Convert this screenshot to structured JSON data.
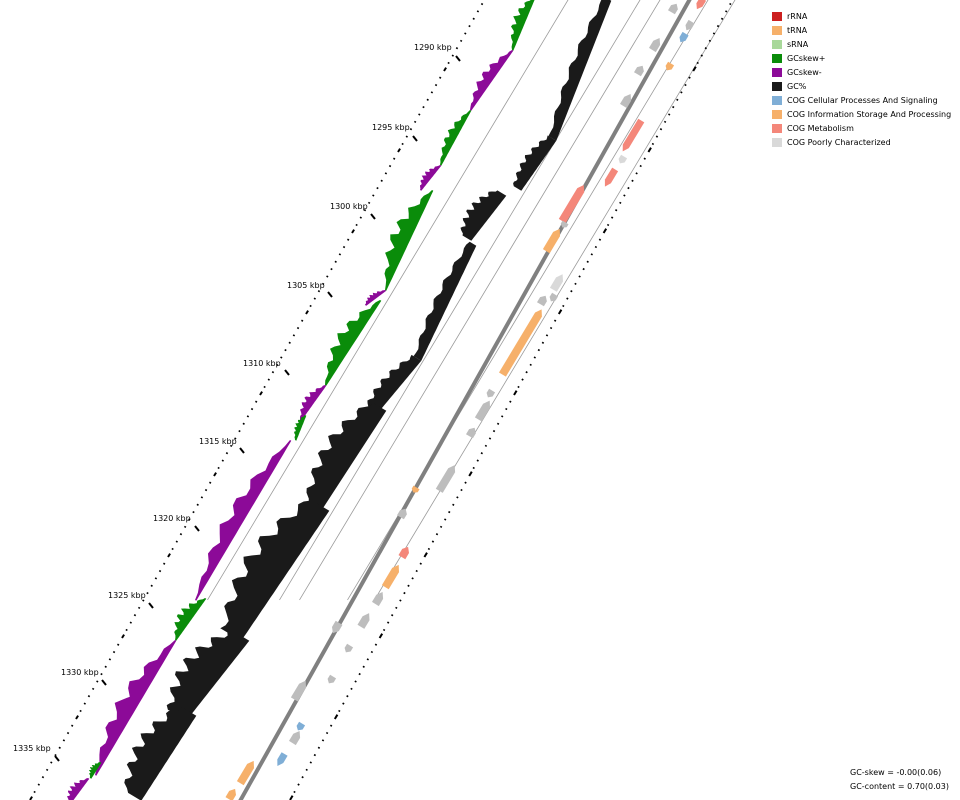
{
  "tick_labels": [
    "1290 kbp",
    "1295 kbp",
    "1300 kbp",
    "1305 kbp",
    "1310 kbp",
    "1315 kbp",
    "1320 kbp",
    "1325 kbp",
    "1330 kbp",
    "1335 kbp"
  ],
  "legend": [
    {
      "label": "rRNA",
      "color": "#cc1f1f"
    },
    {
      "label": "tRNA",
      "color": "#f6b06a"
    },
    {
      "label": "sRNA",
      "color": "#a8d89a"
    },
    {
      "label": "GCskew+",
      "color": "#0a8c0a"
    },
    {
      "label": "GCskew-",
      "color": "#8c0a98"
    },
    {
      "label": "GC%",
      "color": "#1a1a1a"
    },
    {
      "label": "COG Cellular Processes And Signaling",
      "color": "#7faed6"
    },
    {
      "label": "COG Information Storage And Processing",
      "color": "#f6b06a"
    },
    {
      "label": "COG Metabolism",
      "color": "#f4877a"
    },
    {
      "label": "COG Poorly Characterized",
      "color": "#d9d9d9"
    }
  ],
  "stats": {
    "gc_skew": "GC-skew = -0.00(0.06)",
    "gc_content": "GC-content = 0.70(0.03)"
  },
  "colors": {
    "skew_pos": "#0a8c0a",
    "skew_neg": "#8c0a98",
    "gc": "#1a1a1a",
    "backbone": "#808080",
    "track_line": "#9a9a9a",
    "cog_cellular": "#7faed6",
    "cog_info": "#f6b06a",
    "cog_metabolism": "#f4877a",
    "cog_poor": "#bdbdbd",
    "cog_poor_light": "#d9d9d9"
  }
}
